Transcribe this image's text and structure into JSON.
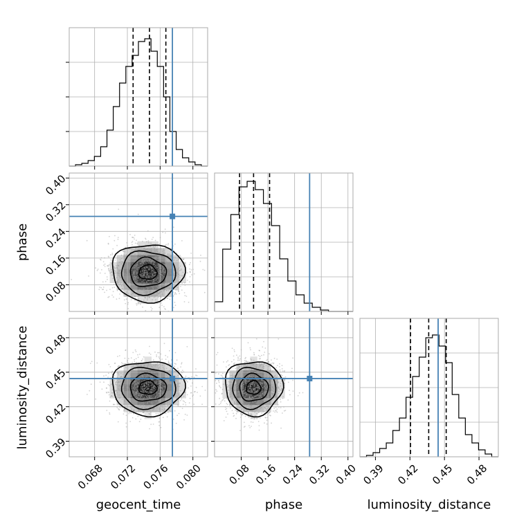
{
  "chart_data": {
    "type": "corner",
    "parameters": [
      "geocent_time",
      "phase",
      "luminosity_distance"
    ],
    "truths": {
      "geocent_time": 0.0775,
      "phase": 0.285,
      "luminosity_distance": 0.4445
    },
    "quantiles": {
      "geocent_time": [
        0.0727,
        0.0747,
        0.0767
      ],
      "phase": [
        0.075,
        0.117,
        0.165
      ],
      "luminosity_distance": [
        0.4205,
        0.4363,
        0.4515
      ]
    },
    "axes": {
      "geocent_time": {
        "range": [
          0.0649,
          0.0818
        ],
        "ticks": [
          0.068,
          0.072,
          0.076,
          0.08
        ],
        "tick_labels": [
          "0.068",
          "0.072",
          "0.076",
          "0.080"
        ]
      },
      "phase": {
        "range": [
          0.0,
          0.415
        ],
        "ticks": [
          0.08,
          0.16,
          0.24,
          0.32,
          0.4
        ],
        "tick_labels": [
          "0.08",
          "0.16",
          "0.24",
          "0.32",
          "0.40"
        ]
      },
      "luminosity_distance": {
        "range": [
          0.3765,
          0.4968
        ],
        "ticks": [
          0.39,
          0.42,
          0.45,
          0.48
        ],
        "tick_labels": [
          "0.39",
          "0.42",
          "0.45",
          "0.48"
        ]
      }
    },
    "histograms": {
      "geocent_time": {
        "range": [
          0.0649,
          0.0818
        ],
        "counts": [
          0,
          1,
          2,
          4,
          7,
          14,
          26,
          43,
          60,
          72,
          80,
          90,
          92,
          83,
          72,
          50,
          25,
          12,
          6,
          3,
          1,
          0
        ],
        "ymax": 100
      },
      "phase": {
        "range": [
          0.0,
          0.415
        ],
        "counts": [
          7,
          45,
          70,
          90,
          94,
          88,
          78,
          62,
          38,
          22,
          12,
          6,
          3,
          1,
          0,
          0,
          0
        ],
        "ymax": 100
      },
      "luminosity_distance": {
        "range": [
          0.3765,
          0.4968
        ],
        "counts": [
          0,
          1,
          3,
          6,
          10,
          19,
          28,
          43,
          58,
          72,
          86,
          88,
          80,
          68,
          45,
          28,
          16,
          10,
          5,
          2,
          0
        ],
        "ymax": 100
      }
    },
    "pairs": [
      {
        "x": "geocent_time",
        "y": "phase",
        "center": [
          0.0745,
          0.117
        ],
        "spread": [
          0.0022,
          0.043
        ]
      },
      {
        "x": "geocent_time",
        "y": "luminosity_distance",
        "center": [
          0.0745,
          0.4365
        ],
        "spread": [
          0.0022,
          0.0118
        ]
      },
      {
        "x": "phase",
        "y": "luminosity_distance",
        "center": [
          0.117,
          0.4365
        ],
        "spread": [
          0.043,
          0.0118
        ]
      }
    ],
    "grid": true,
    "colors": {
      "truth": "#4682b4",
      "hist": "#000000",
      "quantile": "#000000",
      "scatter": "#999999",
      "frame": "#aaaaaa",
      "grid": "#b0b0b0"
    }
  }
}
